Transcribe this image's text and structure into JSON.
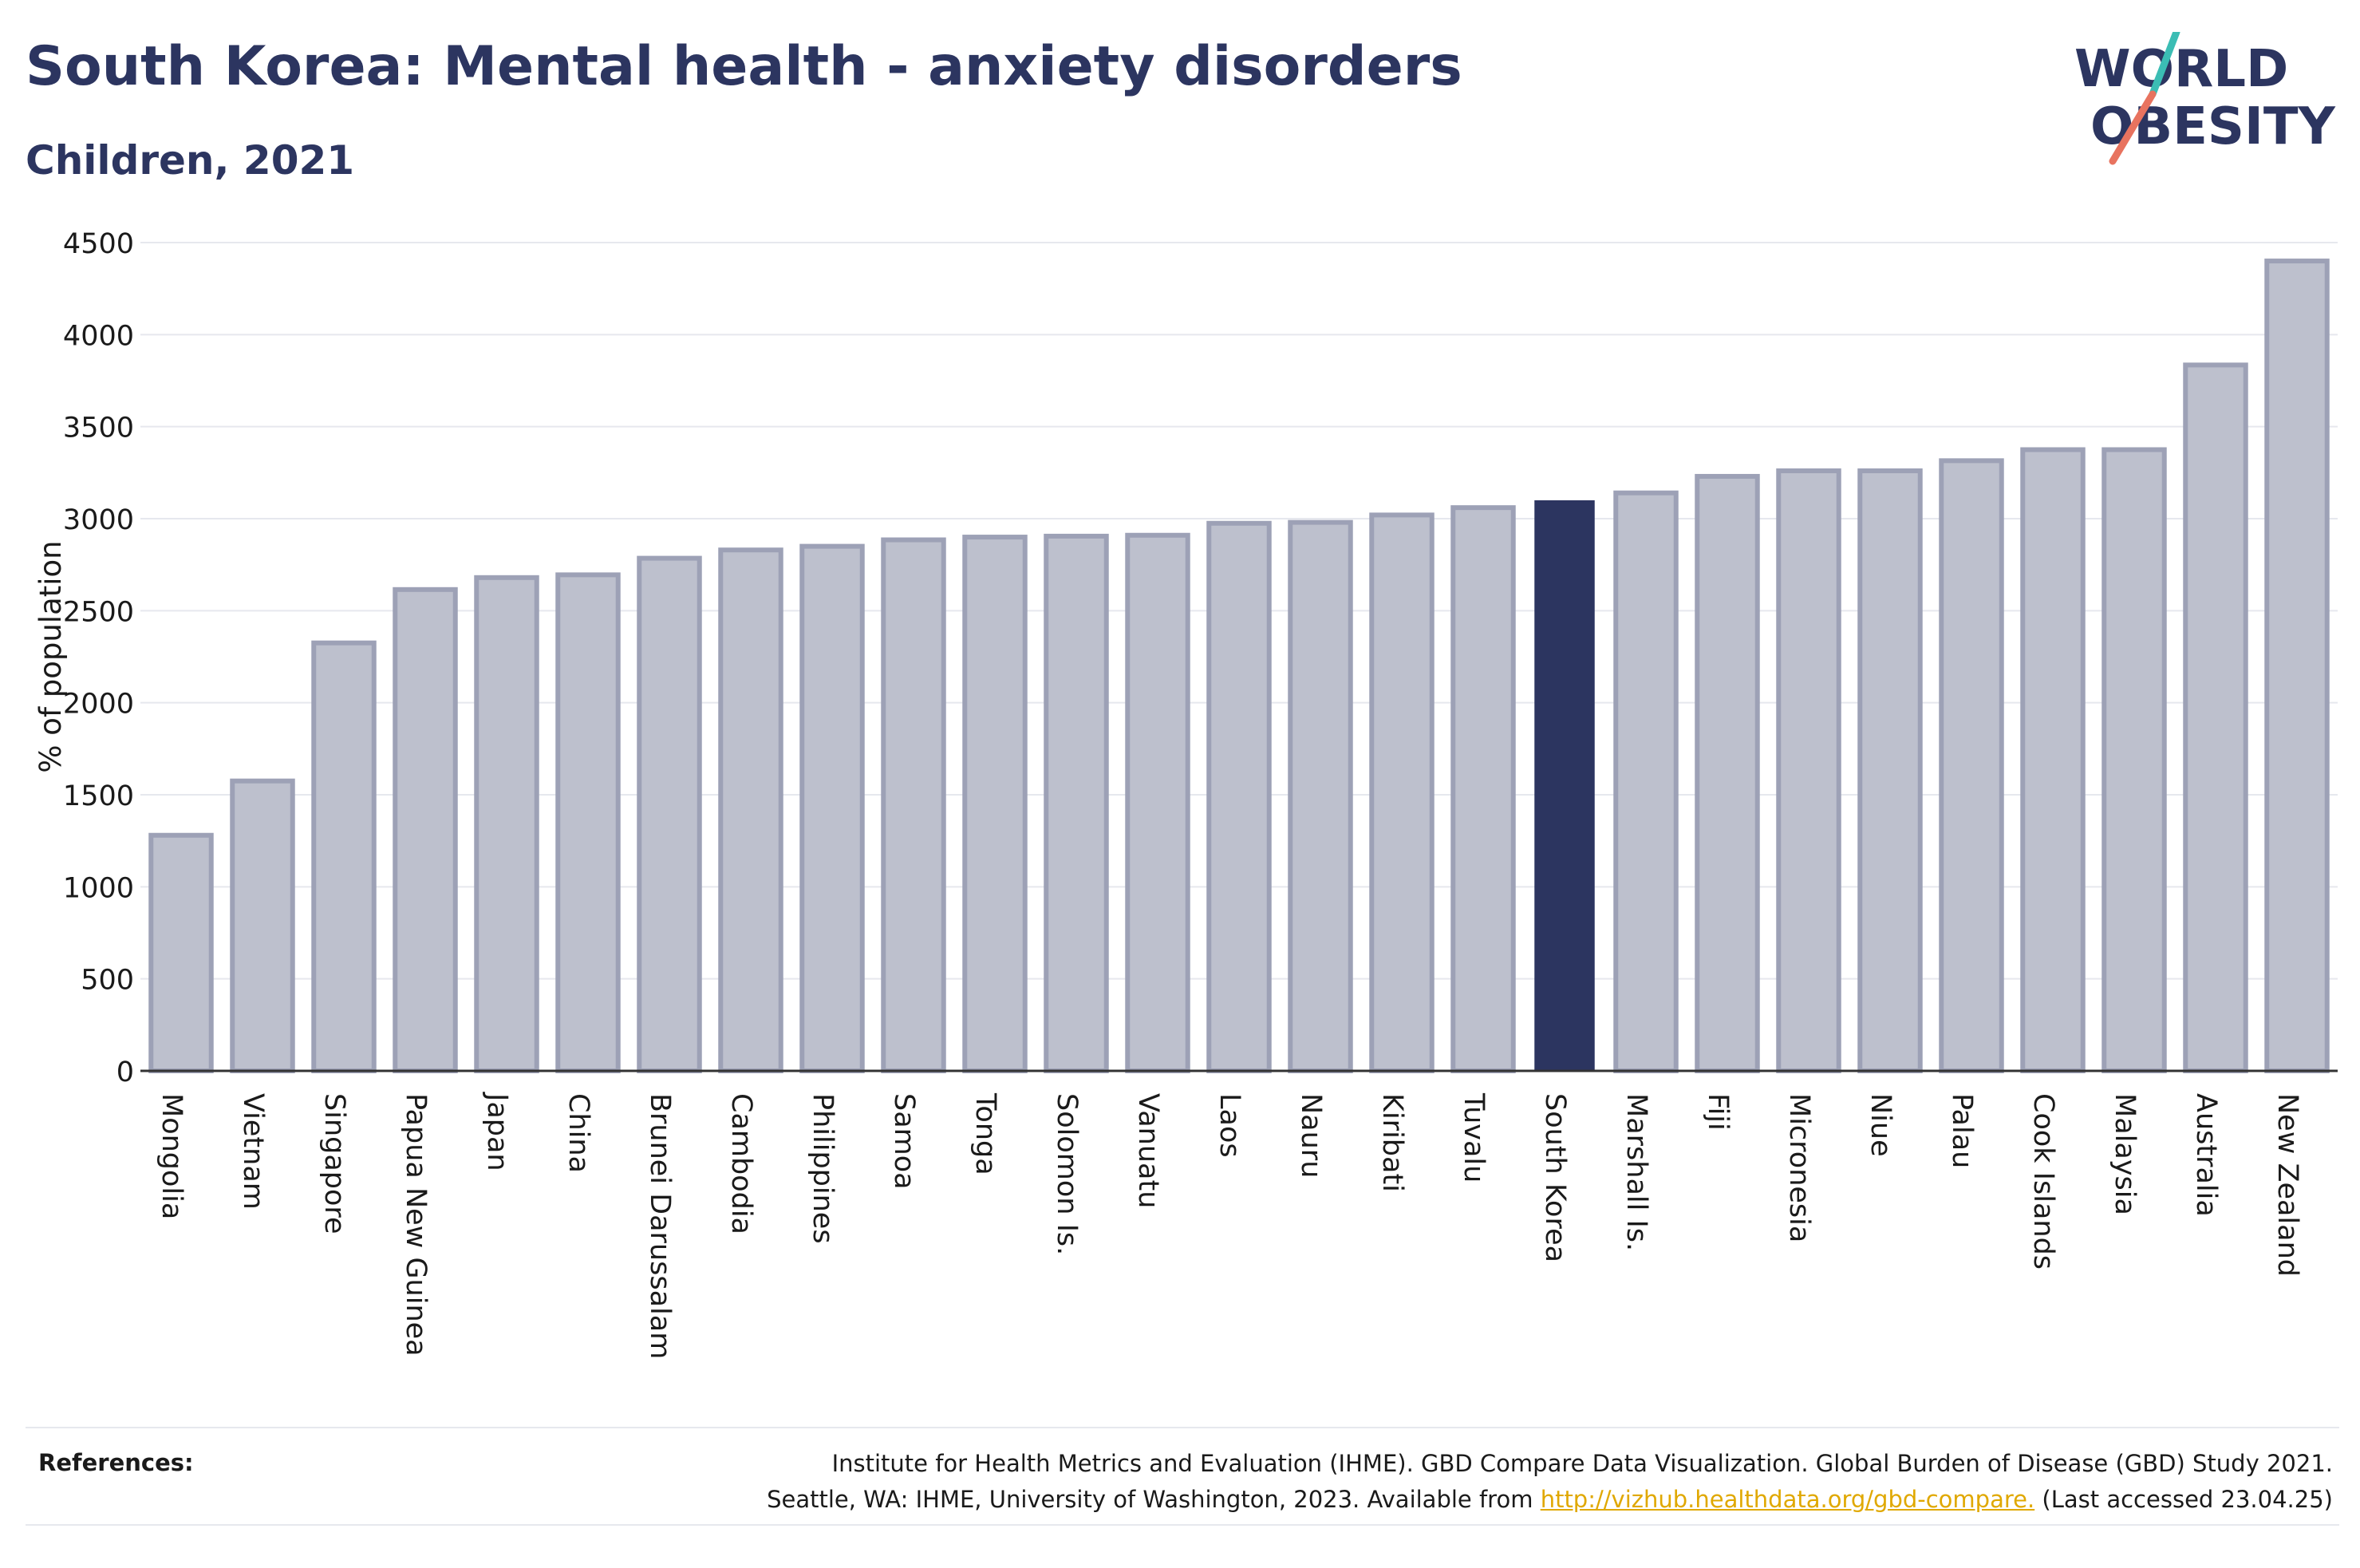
{
  "header": {
    "title": "South Korea: Mental health - anxiety disorders",
    "subtitle": "Children, 2021"
  },
  "logo": {
    "line1": "WORLD",
    "line2": "OBESITY",
    "text_color": "#2c3560",
    "slash_colors": [
      "#3bbdb4",
      "#e8735f"
    ]
  },
  "references": {
    "label": "References:",
    "line1": "Institute for Health Metrics and Evaluation (IHME). GBD Compare Data Visualization. Global Burden of Disease (GBD) Study 2021.",
    "line2_before": "Seattle, WA: IHME, University of Washington, 2023. Available from ",
    "link": "http://vizhub.healthdata.org/gbd-compare.",
    "line2_after": " (Last accessed 23.04.25)"
  },
  "colors": {
    "bar_fill": "#bdc0cd",
    "bar_stroke": "#9da1b6",
    "highlight": "#2c3560",
    "grid": "#e6e8ee",
    "axis": "#333333"
  },
  "chart_data": {
    "type": "bar",
    "title": "South Korea: Mental health - anxiety disorders",
    "subtitle": "Children, 2021",
    "xlabel": "",
    "ylabel": "% of population",
    "ylim": [
      0,
      4500
    ],
    "yticks": [
      0,
      500,
      1000,
      1500,
      2000,
      2500,
      3000,
      3500,
      4000,
      4500
    ],
    "grid": true,
    "highlight": "South Korea",
    "categories": [
      "Mongolia",
      "Vietnam",
      "Singapore",
      "Papua New Guinea",
      "Japan",
      "China",
      "Brunei Darussalam",
      "Cambodia",
      "Philippines",
      "Samoa",
      "Tonga",
      "Solomon Is.",
      "Vanuatu",
      "Laos",
      "Nauru",
      "Kiribati",
      "Tuvalu",
      "South Korea",
      "Marshall Is.",
      "Fiji",
      "Micronesia",
      "Niue",
      "Palau",
      "Cook Islands",
      "Malaysia",
      "Australia",
      "New Zealand"
    ],
    "values": [
      1280,
      1575,
      2325,
      2615,
      2680,
      2695,
      2785,
      2830,
      2850,
      2885,
      2900,
      2905,
      2910,
      2975,
      2980,
      3020,
      3060,
      3100,
      3140,
      3230,
      3260,
      3260,
      3315,
      3375,
      3375,
      3835,
      4400
    ]
  }
}
